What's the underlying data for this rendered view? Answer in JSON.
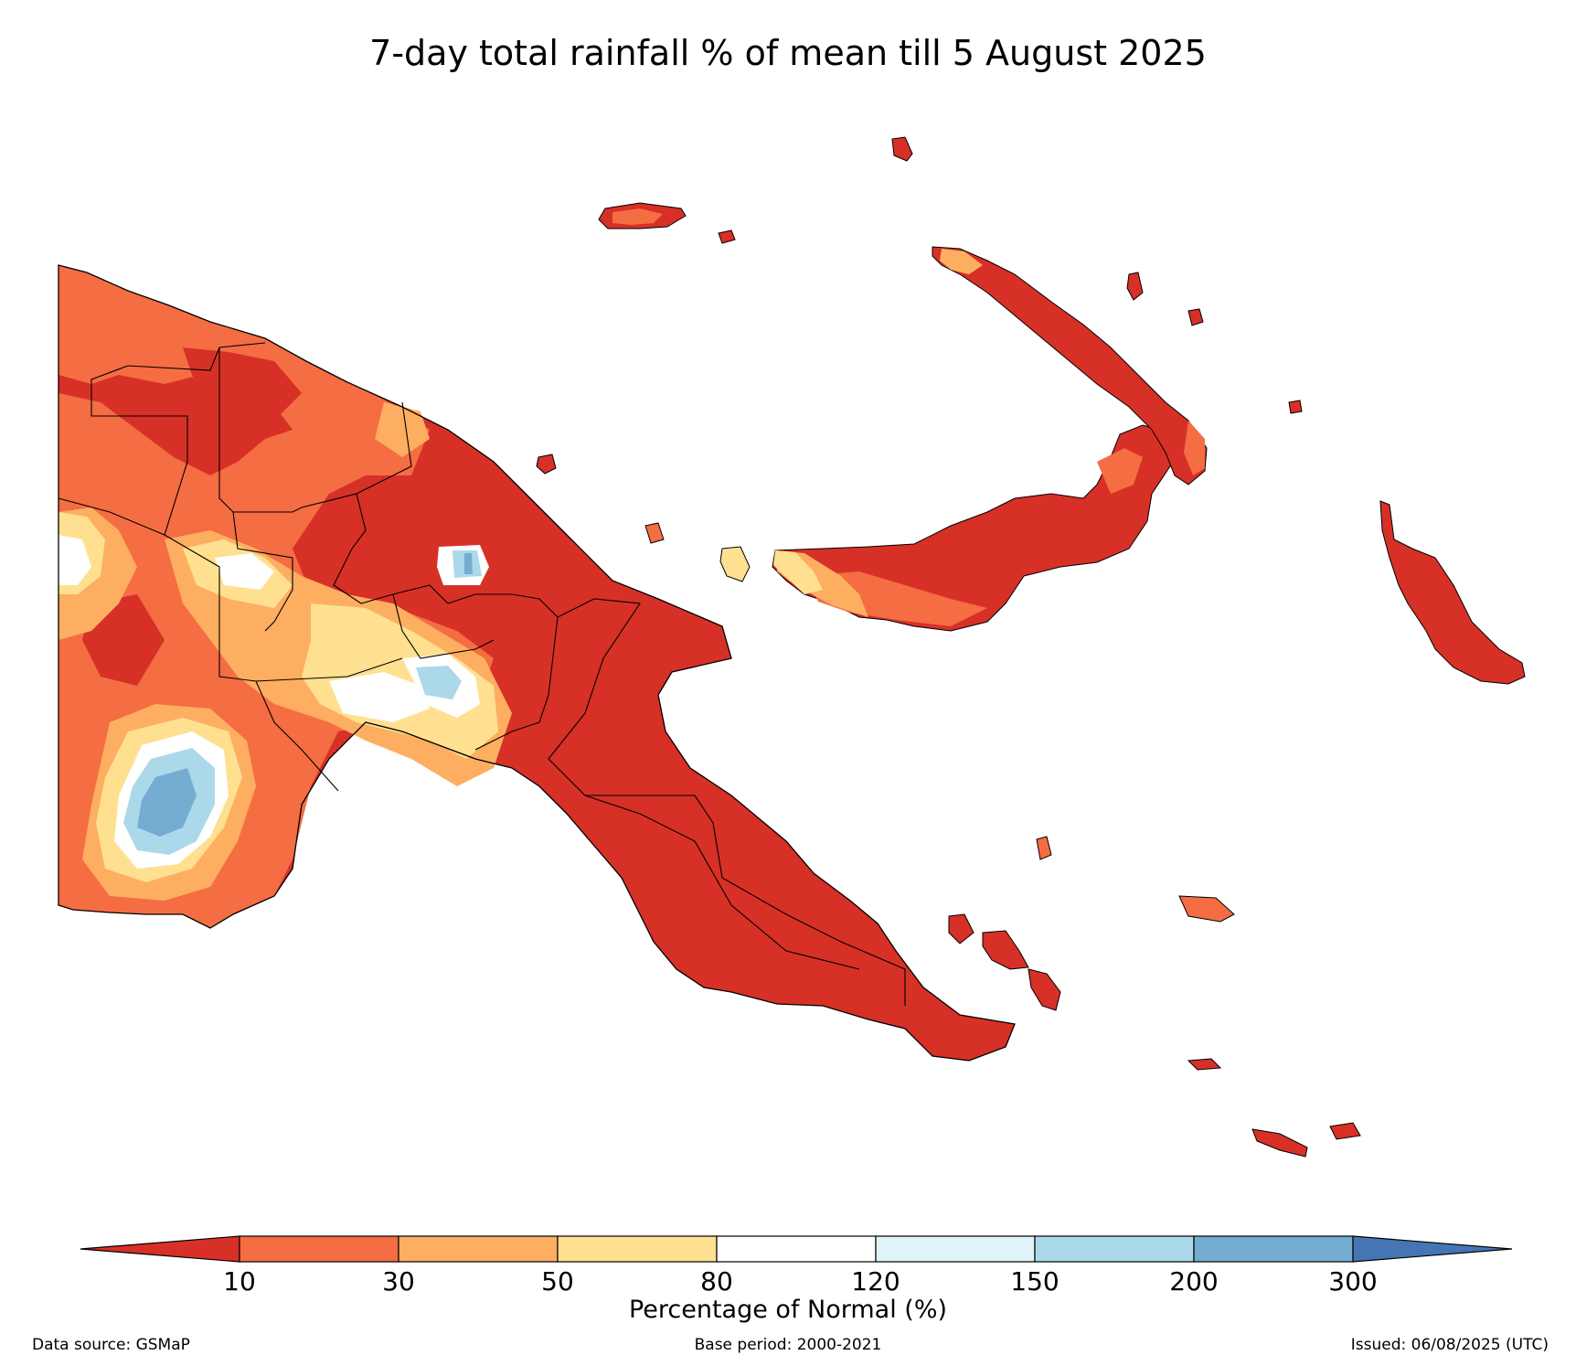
{
  "title": "7-day total rainfall % of mean till 5 August 2025",
  "colors": {
    "lt10": "#d73027",
    "c10_30": "#f46d43",
    "c30_50": "#fdae61",
    "c50_80": "#fee090",
    "c80_120": "#ffffff",
    "c120_150": "#e0f3f8",
    "c150_200": "#abd9e9",
    "c200_300": "#74add1",
    "gt300": "#4575b4",
    "border": "#000000"
  },
  "colorbar": {
    "label": "Percentage of Normal (%)",
    "ticks": [
      "10",
      "30",
      "50",
      "80",
      "120",
      "150",
      "200",
      "300"
    ]
  },
  "footer": {
    "source": "Data source: GSMaP",
    "base_period": "Base period: 2000-2021",
    "issued": "Issued: 06/08/2025 (UTC)"
  }
}
